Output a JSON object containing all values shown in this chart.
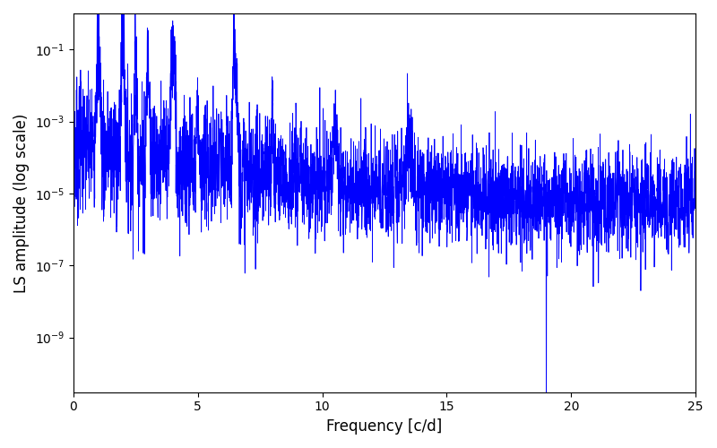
{
  "xlabel": "Frequency [c/d]",
  "ylabel": "LS amplitude (log scale)",
  "xlim": [
    0,
    25
  ],
  "ylim": [
    3e-11,
    1.0
  ],
  "yticks": [
    1e-09,
    1e-07,
    1e-05,
    0.001,
    0.1
  ],
  "line_color": "#0000ff",
  "line_width": 0.6,
  "figsize": [
    8.0,
    5.0
  ],
  "dpi": 100,
  "seed": 7,
  "n_points": 4000,
  "background_color": "#ffffff"
}
